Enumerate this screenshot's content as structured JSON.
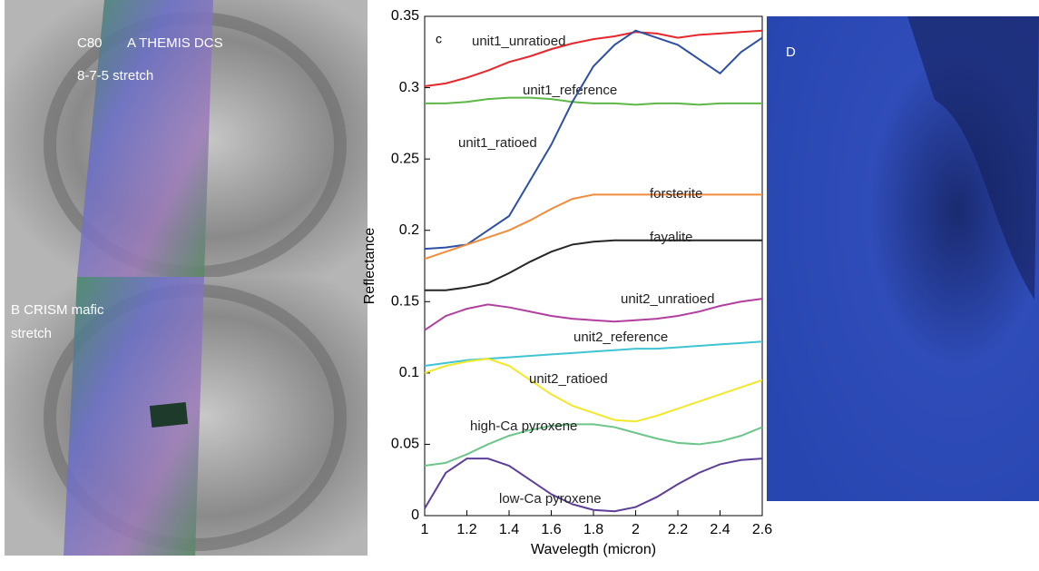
{
  "panels": {
    "a_title": "C80",
    "a_label": "A  THEMIS DCS",
    "a_stretch": "8-7-5 stretch",
    "b_label": "B  CRISM mafic",
    "b_stretch": "stretch",
    "d_label": "D"
  },
  "chart_data": {
    "type": "line",
    "panel_label": "c",
    "xlabel": "Wavelegth (micron)",
    "ylabel": "Reflectance",
    "x": [
      1.0,
      1.1,
      1.2,
      1.3,
      1.4,
      1.5,
      1.6,
      1.7,
      1.8,
      1.9,
      2.0,
      2.1,
      2.2,
      2.3,
      2.4,
      2.5,
      2.6
    ],
    "xlim": [
      1,
      2.6
    ],
    "xticks": [
      1,
      1.2,
      1.4,
      1.6,
      1.8,
      2,
      2.2,
      2.4,
      2.6
    ],
    "ylim": [
      0,
      0.35
    ],
    "yticks": [
      0,
      0.05,
      0.1,
      0.15,
      0.2,
      0.25,
      0.3,
      0.35
    ],
    "series": [
      {
        "name": "unit1_unratioed",
        "color": "#e8262b",
        "values": [
          0.301,
          0.303,
          0.307,
          0.312,
          0.318,
          0.322,
          0.327,
          0.331,
          0.334,
          0.336,
          0.339,
          0.338,
          0.335,
          0.337,
          0.338,
          0.339,
          0.34
        ]
      },
      {
        "name": "unit1_reference",
        "color": "#5db847",
        "values": [
          0.289,
          0.289,
          0.29,
          0.292,
          0.293,
          0.293,
          0.292,
          0.29,
          0.289,
          0.289,
          0.288,
          0.289,
          0.289,
          0.288,
          0.289,
          0.289,
          0.289
        ]
      },
      {
        "name": "unit1_ratioed",
        "color": "#2e4fa3",
        "values": [
          0.187,
          0.188,
          0.19,
          0.2,
          0.21,
          0.235,
          0.26,
          0.29,
          0.315,
          0.33,
          0.34,
          0.335,
          0.33,
          0.32,
          0.31,
          0.325,
          0.335
        ]
      },
      {
        "name": "forsterite",
        "color": "#f08c3a",
        "values": [
          0.18,
          0.185,
          0.19,
          0.195,
          0.2,
          0.207,
          0.215,
          0.222,
          0.225,
          0.225,
          0.225,
          0.225,
          0.225,
          0.225,
          0.225,
          0.225,
          0.225
        ]
      },
      {
        "name": "fayalite",
        "color": "#262626",
        "values": [
          0.158,
          0.158,
          0.16,
          0.163,
          0.17,
          0.178,
          0.185,
          0.19,
          0.192,
          0.193,
          0.193,
          0.193,
          0.193,
          0.193,
          0.193,
          0.193,
          0.193
        ]
      },
      {
        "name": "unit2_unratioed",
        "color": "#b23fa0",
        "values": [
          0.13,
          0.14,
          0.145,
          0.148,
          0.146,
          0.143,
          0.14,
          0.138,
          0.137,
          0.136,
          0.137,
          0.138,
          0.14,
          0.143,
          0.147,
          0.15,
          0.152
        ]
      },
      {
        "name": "unit2_reference",
        "color": "#3fc4d4",
        "values": [
          0.105,
          0.107,
          0.109,
          0.11,
          0.111,
          0.112,
          0.113,
          0.114,
          0.115,
          0.116,
          0.117,
          0.117,
          0.118,
          0.119,
          0.12,
          0.121,
          0.122
        ]
      },
      {
        "name": "unit2_ratioed",
        "color": "#f2e82a",
        "values": [
          0.1,
          0.105,
          0.108,
          0.11,
          0.105,
          0.095,
          0.085,
          0.077,
          0.072,
          0.067,
          0.066,
          0.07,
          0.075,
          0.08,
          0.085,
          0.09,
          0.095
        ]
      },
      {
        "name": "high-Ca pyroxene",
        "color": "#6cc58a",
        "values": [
          0.035,
          0.037,
          0.043,
          0.05,
          0.056,
          0.06,
          0.063,
          0.064,
          0.064,
          0.062,
          0.058,
          0.054,
          0.051,
          0.05,
          0.052,
          0.056,
          0.062
        ]
      },
      {
        "name": "low-Ca pyroxene",
        "color": "#5b3f98",
        "values": [
          0.005,
          0.03,
          0.04,
          0.04,
          0.035,
          0.025,
          0.015,
          0.008,
          0.004,
          0.003,
          0.006,
          0.013,
          0.022,
          0.03,
          0.036,
          0.039,
          0.04
        ]
      }
    ]
  }
}
